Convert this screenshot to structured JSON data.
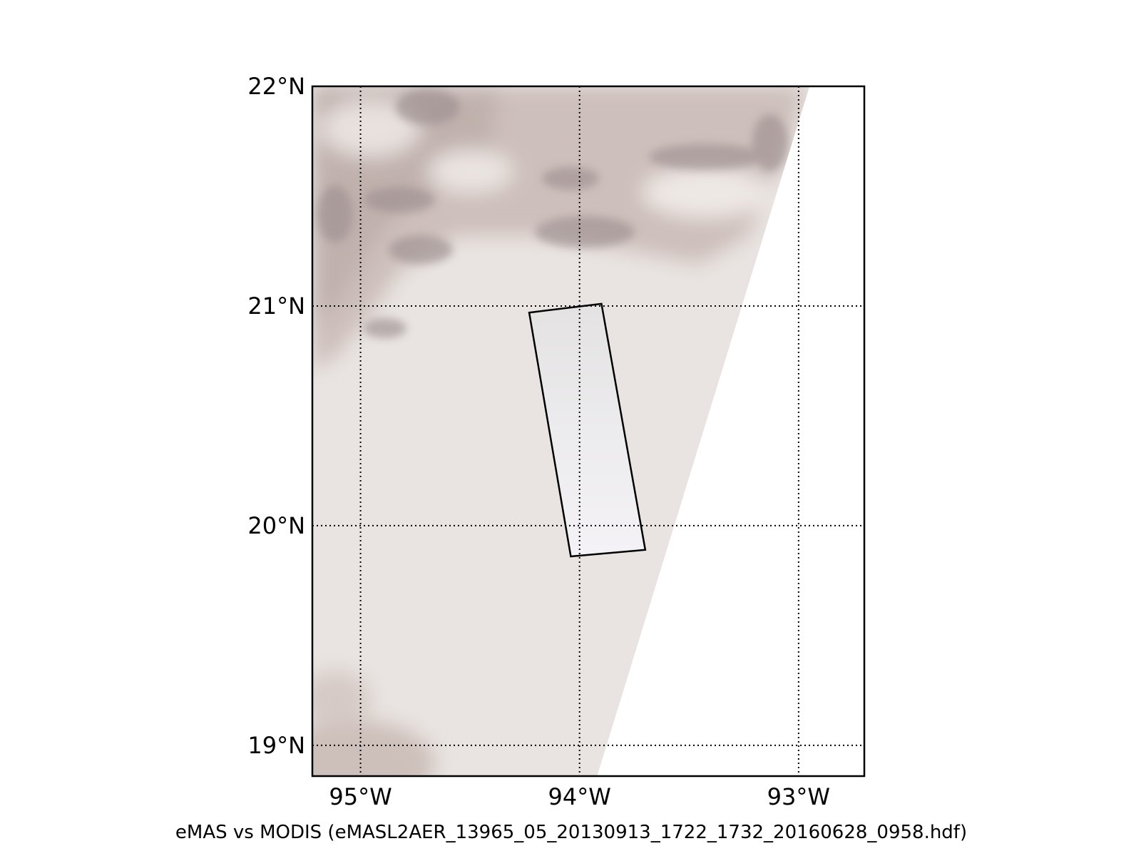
{
  "map": {
    "lon_range": [
      -95.22,
      -92.7
    ],
    "lat_range": [
      18.86,
      22.0
    ],
    "meridians": [
      -95,
      -94,
      -93
    ],
    "parallels": [
      19,
      20,
      21,
      22
    ],
    "lon_labels": [
      "95°W",
      "94°W",
      "93°W"
    ],
    "lat_labels": [
      "19°N",
      "20°N",
      "21°N",
      "22°N"
    ],
    "grid_style": "dotted",
    "swath_edge": [
      [
        -92.95,
        22.0
      ],
      [
        -93.92,
        18.86
      ]
    ],
    "emas_box": [
      [
        -94.23,
        20.97
      ],
      [
        -93.9,
        21.01
      ],
      [
        -93.7,
        19.89
      ],
      [
        -94.04,
        19.86
      ]
    ],
    "colors": {
      "background_light": "#e9e4e1",
      "cloud_dark": "#9c8f8f",
      "cloud_mid": "#c9bcb7",
      "box_fill": "#eeeeef",
      "outside_swath": "#ffffff",
      "frame": "#000000"
    }
  },
  "caption": "eMAS vs MODIS (eMASL2AER_13965_05_20130913_1722_1732_20160628_0958.hdf)"
}
